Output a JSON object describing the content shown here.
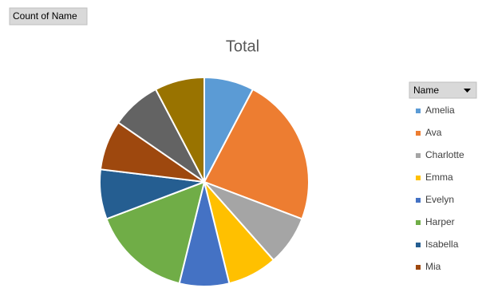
{
  "chart_data": {
    "type": "pie",
    "title": "Total",
    "field_button": "Count of Name",
    "legend_title": "Name",
    "categories": [
      "Amelia",
      "Ava",
      "Charlotte",
      "Emma",
      "Evelyn",
      "Harper",
      "Isabella",
      "Mia",
      null,
      null
    ],
    "values": [
      1,
      3,
      1,
      1,
      1,
      2,
      1,
      1,
      1,
      1
    ],
    "colors": [
      "#5b9bd5",
      "#ed7d31",
      "#a5a5a5",
      "#ffc000",
      "#4472c4",
      "#70ad47",
      "#255e91",
      "#9e480e",
      "#636363",
      "#997300"
    ],
    "legend": "right"
  }
}
